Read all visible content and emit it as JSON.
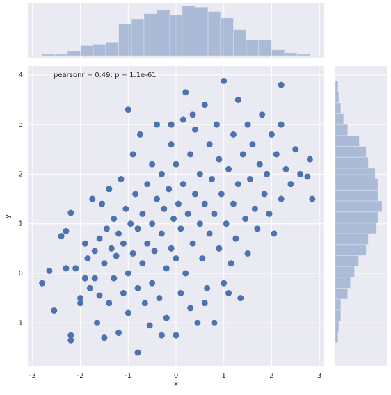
{
  "chart_data": [
    {
      "type": "scatter",
      "annotation": "pearsonr = 0.49; p = 1.1e-61",
      "x_label": "x",
      "y_label": "y",
      "color": "#4c72b0",
      "grid": true,
      "xlim": [
        -3.1,
        3.1
      ],
      "ylim": [
        -1.88,
        4.18
      ],
      "xticks": [
        -3,
        -2,
        -1,
        0,
        1,
        2,
        3
      ],
      "yticks": [
        -1,
        0,
        1,
        2,
        3,
        4
      ],
      "x": [
        -2.8,
        -2.65,
        -2.55,
        -2.4,
        -2.3,
        -2.2,
        -2.2,
        -2.2,
        -2.1,
        -2.0,
        -2.0,
        -1.9,
        -1.85,
        -1.8,
        -1.75,
        -1.7,
        -1.7,
        -1.65,
        -1.6,
        -1.6,
        -1.55,
        -1.5,
        -1.5,
        -1.45,
        -1.4,
        -1.4,
        -1.35,
        -1.3,
        -1.3,
        -1.25,
        -1.2,
        -1.2,
        -1.15,
        -1.1,
        -1.1,
        -1.05,
        -1.0,
        -1.0,
        -1.0,
        -0.95,
        -0.9,
        -0.9,
        -0.85,
        -0.8,
        -0.8,
        -0.8,
        -0.75,
        -0.7,
        -0.7,
        -0.65,
        -0.6,
        -0.6,
        -0.55,
        -0.5,
        -0.5,
        -0.5,
        -0.45,
        -0.4,
        -0.4,
        -0.35,
        -0.3,
        -0.3,
        -0.3,
        -0.25,
        -0.2,
        -0.2,
        -0.15,
        -0.1,
        -0.1,
        -0.05,
        0.0,
        0.0,
        0.0,
        0.05,
        0.1,
        0.1,
        0.15,
        0.15,
        0.2,
        0.2,
        0.25,
        0.3,
        0.3,
        0.35,
        0.4,
        0.4,
        0.45,
        0.5,
        0.5,
        0.55,
        0.6,
        0.6,
        0.65,
        0.7,
        0.7,
        0.75,
        0.8,
        0.8,
        0.85,
        0.9,
        0.9,
        0.95,
        1.0,
        1.0,
        1.05,
        1.1,
        1.15,
        1.2,
        1.2,
        1.25,
        1.3,
        1.3,
        1.35,
        1.4,
        1.45,
        1.5,
        1.5,
        1.55,
        1.6,
        1.65,
        1.7,
        1.75,
        1.8,
        1.85,
        1.9,
        1.95,
        2.0,
        2.05,
        2.1,
        2.2,
        2.2,
        2.2,
        2.3,
        2.4,
        2.5,
        2.6,
        2.75,
        2.8,
        2.85,
        -2.3,
        -1.9,
        1.1,
        0.6,
        -0.1,
        0.35
      ],
      "values": [
        -0.2,
        0.05,
        -0.75,
        0.75,
        0.85,
        -1.25,
        -1.35,
        1.22,
        0.1,
        -0.6,
        -0.5,
        0.6,
        0.3,
        -0.3,
        1.5,
        0.45,
        -0.1,
        -1.0,
        0.7,
        -0.45,
        1.4,
        -1.3,
        0.2,
        0.9,
        1.7,
        -0.6,
        0.5,
        1.1,
        -0.1,
        0.35,
        -1.2,
        0.8,
        1.9,
        -0.4,
        0.6,
        1.3,
        3.3,
        0.0,
        -0.8,
        1.0,
        2.4,
        0.4,
        1.6,
        -1.6,
        -0.3,
        0.9,
        2.8,
        1.2,
        0.2,
        -0.6,
        1.8,
        0.6,
        -1.05,
        2.2,
        1.0,
        -0.2,
        0.45,
        1.5,
        3.0,
        -0.5,
        -1.25,
        0.8,
        2.0,
        1.3,
        0.1,
        -0.9,
        1.7,
        2.6,
        0.5,
        1.1,
        -1.25,
        0.3,
        2.2,
        1.4,
        -0.4,
        0.9,
        3.1,
        1.8,
        3.65,
        0.0,
        1.2,
        2.4,
        -0.7,
        0.6,
        1.6,
        2.9,
        -1.0,
        1.0,
        2.0,
        0.3,
        3.4,
        1.4,
        -0.3,
        2.6,
        0.8,
        1.9,
        -1.0,
        1.2,
        3.0,
        0.5,
        2.3,
        1.6,
        3.88,
        -0.2,
        1.0,
        2.1,
        0.2,
        2.8,
        1.4,
        0.7,
        3.5,
        1.8,
        -0.5,
        2.4,
        1.1,
        3.0,
        0.4,
        1.9,
        2.6,
        1.3,
        0.9,
        2.2,
        3.2,
        1.6,
        2.0,
        1.2,
        2.8,
        0.8,
        2.4,
        3.8,
        3.0,
        1.5,
        2.1,
        1.8,
        2.5,
        2.0,
        1.95,
        2.3,
        1.5,
        0.1,
        -0.1,
        -0.4,
        -0.6,
        3.0,
        3.2
      ]
    },
    {
      "type": "histogram",
      "orientation": "vertical",
      "color": "#4c72b0",
      "ylim": [
        0,
        72
      ],
      "bins": [
        -2.8,
        -2.53,
        -2.27,
        -2.0,
        -1.73,
        -1.47,
        -1.2,
        -0.93,
        -0.67,
        -0.4,
        -0.13,
        0.13,
        0.4,
        0.67,
        0.93,
        1.2,
        1.47,
        1.73,
        2.0,
        2.27,
        2.53,
        2.8
      ],
      "values": [
        2,
        2,
        6,
        14,
        16,
        18,
        44,
        50,
        58,
        63,
        56,
        69,
        67,
        61,
        52,
        36,
        22,
        22,
        8,
        4,
        2
      ]
    },
    {
      "type": "histogram",
      "orientation": "horizontal",
      "color": "#4c72b0",
      "xlim": [
        0,
        75
      ],
      "bins": [
        -1.4,
        -1.18,
        -0.96,
        -0.74,
        -0.52,
        -0.3,
        -0.08,
        0.14,
        0.36,
        0.58,
        0.8,
        1.02,
        1.24,
        1.46,
        1.68,
        1.9,
        2.12,
        2.34,
        2.56,
        2.78,
        3.0,
        3.22,
        3.44,
        3.66,
        3.88
      ],
      "values": [
        4,
        5,
        8,
        8,
        18,
        22,
        28,
        34,
        45,
        48,
        60,
        62,
        68,
        62,
        62,
        58,
        48,
        45,
        35,
        18,
        12,
        8,
        5,
        4
      ]
    }
  ]
}
